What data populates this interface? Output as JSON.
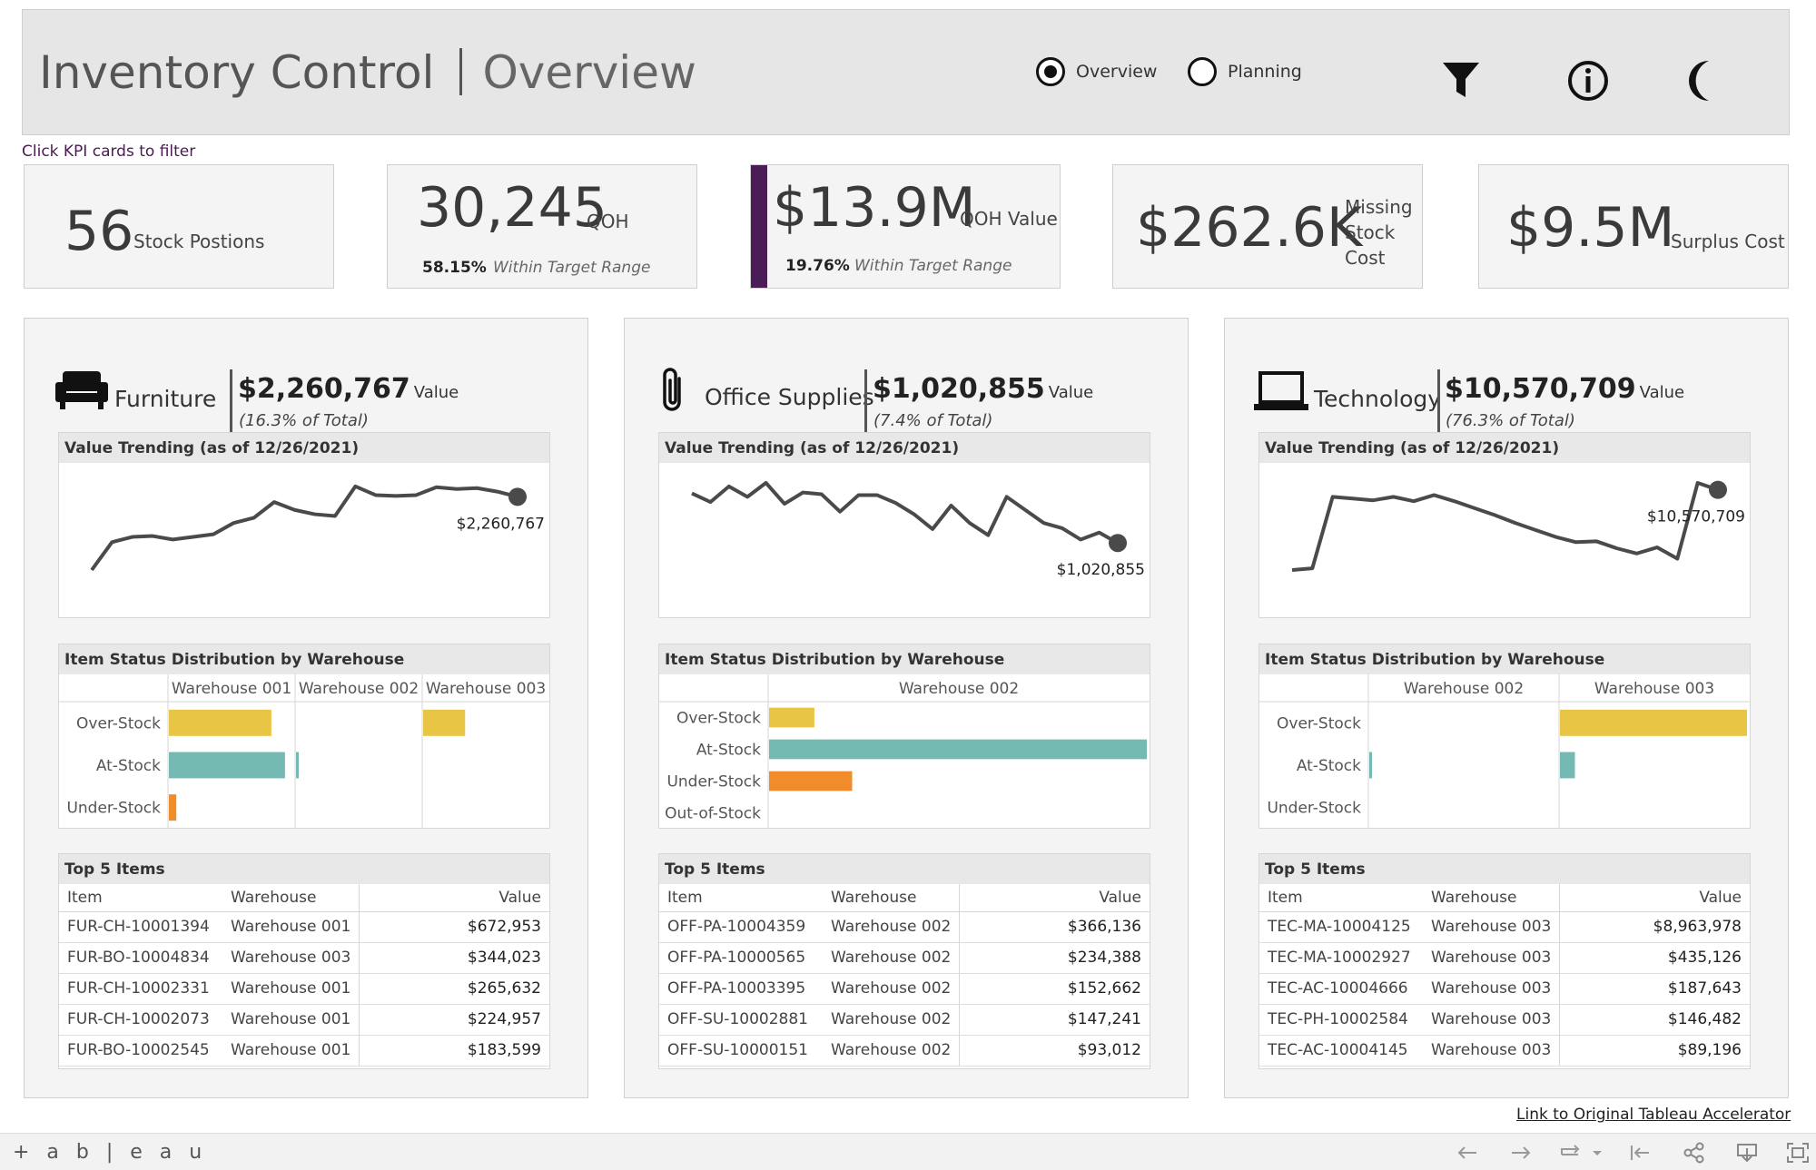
{
  "header": {
    "title": "Inventory Control",
    "subtitle": "Overview",
    "radios": [
      {
        "label": "Overview",
        "selected": true
      },
      {
        "label": "Planning",
        "selected": false
      }
    ],
    "icons": [
      "filter-icon",
      "info-icon",
      "moon-icon"
    ]
  },
  "hint": "Click KPI cards to filter",
  "kpis": {
    "stock_positions": {
      "value": "56",
      "label": "Stock Postions"
    },
    "qoh": {
      "value": "30,245",
      "label": "QOH",
      "pct": "58.15%",
      "note": "Within Target Range"
    },
    "qoh_value": {
      "value": "$13.9M",
      "label": "QOH Value",
      "pct": "19.76%",
      "note": "Within Target Range",
      "accent": "#4a1d56"
    },
    "missing": {
      "value": "$262.6K",
      "label_lines": [
        "Missing",
        "Stock",
        "Cost"
      ]
    },
    "surplus": {
      "value": "$9.5M",
      "label": "Surplus Cost"
    }
  },
  "panels": [
    {
      "name": "Furniture",
      "value": "$2,260,767",
      "value_suffix": "Value",
      "pct": "(16.3% of Total)",
      "trend_title": "Value Trending (as of 12/26/2021)",
      "trend_label": "$2,260,767",
      "trend": [
        0.0,
        0.32,
        0.38,
        0.39,
        0.35,
        0.38,
        0.41,
        0.54,
        0.6,
        0.78,
        0.69,
        0.64,
        0.62,
        0.96,
        0.86,
        0.85,
        0.86,
        0.95,
        0.93,
        0.94,
        0.9,
        0.84
      ],
      "dist_title": "Item Status Distribution by Warehouse",
      "warehouses": [
        "Warehouse 001",
        "Warehouse 002",
        "Warehouse 003"
      ],
      "statuses": [
        "Over-Stock",
        "At-Stock",
        "Under-Stock"
      ],
      "dist": [
        [
          0.83,
          0.0,
          0.34
        ],
        [
          0.94,
          0.02,
          0.0
        ],
        [
          0.06,
          0.0,
          0.0
        ]
      ],
      "top_title": "Top 5 Items",
      "columns": [
        "Item",
        "Warehouse",
        "Value"
      ],
      "rows": [
        [
          "FUR-CH-10001394",
          "Warehouse 001",
          "$672,953"
        ],
        [
          "FUR-BO-10004834",
          "Warehouse 003",
          "$344,023"
        ],
        [
          "FUR-CH-10002331",
          "Warehouse 001",
          "$265,632"
        ],
        [
          "FUR-CH-10002073",
          "Warehouse 001",
          "$224,957"
        ],
        [
          "FUR-BO-10002545",
          "Warehouse 001",
          "$183,599"
        ]
      ]
    },
    {
      "name": "Office Supplies",
      "value": "$1,020,855",
      "value_suffix": "Value",
      "pct": "(7.4% of Total)",
      "trend_title": "Value Trending (as of 12/26/2021)",
      "trend_label": "$1,020,855",
      "trend": [
        0.88,
        0.78,
        0.96,
        0.84,
        1.0,
        0.76,
        0.89,
        0.87,
        0.67,
        0.86,
        0.86,
        0.77,
        0.64,
        0.47,
        0.74,
        0.54,
        0.4,
        0.84,
        0.69,
        0.54,
        0.48,
        0.35,
        0.43,
        0.31
      ],
      "dist_title": "Item Status Distribution by Warehouse",
      "warehouses": [
        "Warehouse 002"
      ],
      "statuses": [
        "Over-Stock",
        "At-Stock",
        "Under-Stock",
        "Out-of-Stock"
      ],
      "dist": [
        [
          0.12
        ],
        [
          1.0
        ],
        [
          0.22
        ],
        [
          0.0
        ]
      ],
      "top_title": "Top 5 Items",
      "columns": [
        "Item",
        "Warehouse",
        "Value"
      ],
      "rows": [
        [
          "OFF-PA-10004359",
          "Warehouse 002",
          "$366,136"
        ],
        [
          "OFF-PA-10000565",
          "Warehouse 002",
          "$234,388"
        ],
        [
          "OFF-PA-10003395",
          "Warehouse 002",
          "$152,662"
        ],
        [
          "OFF-SU-10002881",
          "Warehouse 002",
          "$147,241"
        ],
        [
          "OFF-SU-10000151",
          "Warehouse 002",
          "$93,012"
        ]
      ]
    },
    {
      "name": "Technology",
      "value": "$10,570,709",
      "value_suffix": "Value",
      "pct": "(76.3% of Total)",
      "trend_title": "Value Trending (as of 12/26/2021)",
      "trend_label": "$10,570,709",
      "trend": [
        0.0,
        0.02,
        0.84,
        0.82,
        0.8,
        0.84,
        0.79,
        0.86,
        0.79,
        0.71,
        0.63,
        0.54,
        0.46,
        0.38,
        0.32,
        0.33,
        0.25,
        0.19,
        0.26,
        0.13,
        1.0,
        0.92
      ],
      "dist_title": "Item Status Distribution by Warehouse",
      "warehouses": [
        "Warehouse 002",
        "Warehouse 003"
      ],
      "statuses": [
        "Over-Stock",
        "At-Stock",
        "Under-Stock"
      ],
      "dist": [
        [
          0.0,
          1.0
        ],
        [
          0.01,
          0.08
        ],
        [
          0.0,
          0.0
        ]
      ],
      "top_title": "Top 5 Items",
      "columns": [
        "Item",
        "Warehouse",
        "Value"
      ],
      "rows": [
        [
          "TEC-MA-10004125",
          "Warehouse 003",
          "$8,963,978"
        ],
        [
          "TEC-MA-10002927",
          "Warehouse 003",
          "$435,126"
        ],
        [
          "TEC-AC-10004666",
          "Warehouse 003",
          "$187,643"
        ],
        [
          "TEC-PH-10002584",
          "Warehouse 003",
          "$146,482"
        ],
        [
          "TEC-AC-10004145",
          "Warehouse 003",
          "$89,196"
        ]
      ]
    }
  ],
  "colors": {
    "over_stock": "#e9c545",
    "at_stock": "#74bab2",
    "under_stock": "#f08c2b",
    "line": "#4a4a4a",
    "accent": "#4a1d56"
  },
  "link": "Link to Original Tableau Accelerator",
  "footer": {
    "logo": "+ a b | e a u",
    "icons": [
      "undo-icon",
      "redo-icon",
      "revert-icon",
      "reset-icon",
      "share-icon",
      "download-icon",
      "fullscreen-icon"
    ]
  }
}
